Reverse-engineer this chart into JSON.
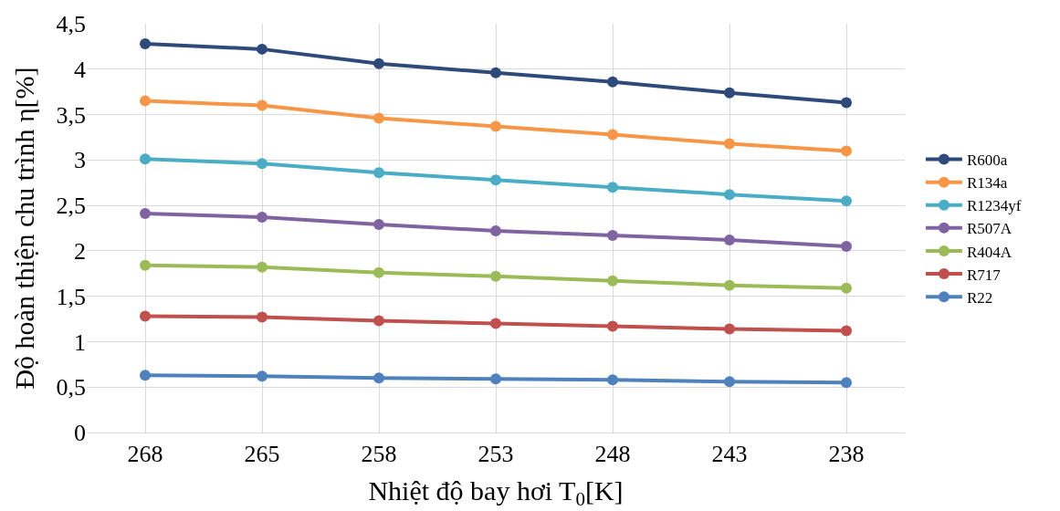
{
  "chart_data": {
    "type": "line",
    "xlabel": "Nhiệt độ bay hơi T$_{0}$[K]",
    "ylabel": "Độ hoàn thiện chu trình η[%]",
    "categories": [
      "268",
      "265",
      "258",
      "253",
      "248",
      "243",
      "238"
    ],
    "series": [
      {
        "name": "R600a",
        "color": "#2e4a7a",
        "values": [
          4.28,
          4.22,
          4.06,
          3.96,
          3.86,
          3.74,
          3.63
        ]
      },
      {
        "name": "R134a",
        "color": "#f79646",
        "values": [
          3.65,
          3.6,
          3.46,
          3.37,
          3.28,
          3.18,
          3.1
        ]
      },
      {
        "name": "R1234yf",
        "color": "#4bacc6",
        "values": [
          3.01,
          2.96,
          2.86,
          2.78,
          2.7,
          2.62,
          2.55
        ]
      },
      {
        "name": "R507A",
        "color": "#8064a2",
        "values": [
          2.41,
          2.37,
          2.29,
          2.22,
          2.17,
          2.12,
          2.05
        ]
      },
      {
        "name": "R404A",
        "color": "#9bbb59",
        "values": [
          1.84,
          1.82,
          1.76,
          1.72,
          1.67,
          1.62,
          1.59
        ]
      },
      {
        "name": "R717",
        "color": "#c0504d",
        "values": [
          1.28,
          1.27,
          1.23,
          1.2,
          1.17,
          1.14,
          1.12
        ]
      },
      {
        "name": "R22",
        "color": "#4f81bd",
        "values": [
          0.63,
          0.62,
          0.6,
          0.59,
          0.58,
          0.56,
          0.55
        ]
      }
    ],
    "ylim": [
      0,
      4.5
    ],
    "yticks": [
      0,
      {
        "value": 0.5,
        "label": "0,5"
      },
      1,
      {
        "value": 1.5,
        "label": "1,5"
      },
      2,
      {
        "value": 2.5,
        "label": "2,5"
      },
      3,
      {
        "value": 3.5,
        "label": "3,5"
      },
      4,
      {
        "value": 4.5,
        "label": "4,5"
      }
    ],
    "grid": true,
    "legend": "right",
    "marker": "circle",
    "line_style": "solid"
  }
}
